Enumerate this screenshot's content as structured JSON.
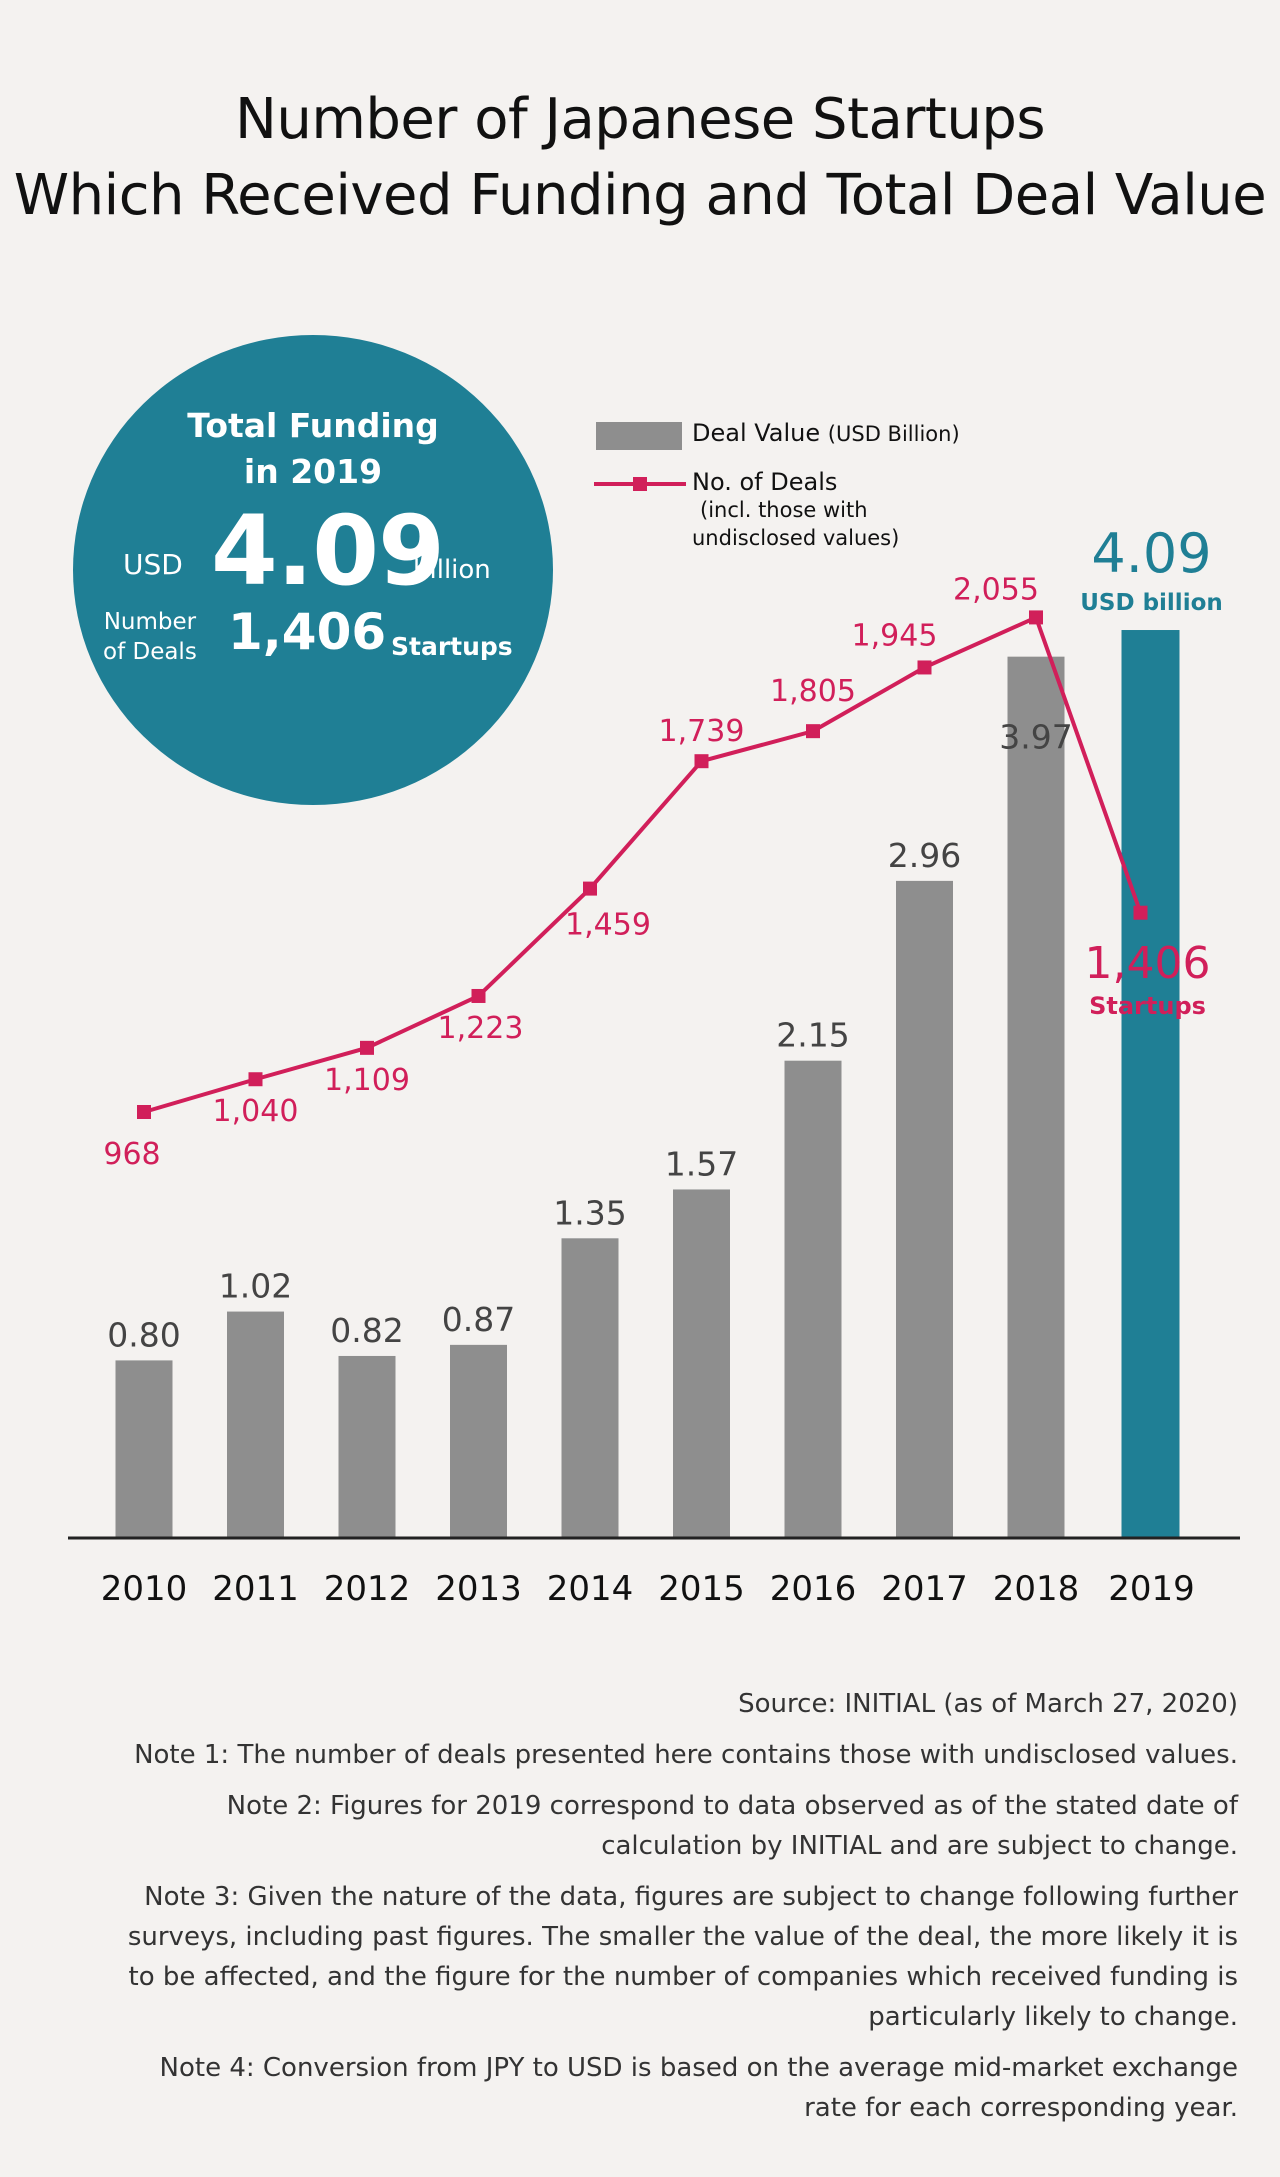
{
  "title_line1": "Number of Japanese Startups",
  "title_line2": "Which Received Funding and Total Deal Value",
  "badge": {
    "heading_line1": "Total Funding",
    "heading_line2": "in 2019",
    "currency": "USD",
    "amount": "4.09",
    "unit": "billion",
    "deals_label_line1": "Number",
    "deals_label_line2": "of Deals",
    "deals_value": "1,406",
    "deals_unit": "Startups"
  },
  "legend": {
    "bars_label": "Deal Value",
    "bars_unit": "(USD Billion)",
    "line_label": "No. of Deals",
    "line_note_line1": "(incl. those with",
    "line_note_line2": "undisclosed values)"
  },
  "highlight": {
    "value_label": "4.09",
    "value_unit": "USD billion",
    "deals_label": "1,406",
    "deals_unit": "Startups"
  },
  "colors": {
    "bar": "#8e8e8e",
    "highlight_bar": "#1f7f95",
    "line": "#d11f5a",
    "background": "#f4f2f0"
  },
  "chart_data": {
    "type": "bar",
    "categories": [
      "2010",
      "2011",
      "2012",
      "2013",
      "2014",
      "2015",
      "2016",
      "2017",
      "2018",
      "2019"
    ],
    "series": [
      {
        "name": "Deal Value (USD Billion)",
        "type": "bar",
        "values": [
          0.8,
          1.02,
          0.82,
          0.87,
          1.35,
          1.57,
          2.15,
          2.96,
          3.97,
          4.09
        ],
        "labels": [
          "0.80",
          "1.02",
          "0.82",
          "0.87",
          "1.35",
          "1.57",
          "2.15",
          "2.96",
          "3.97",
          "4.09"
        ]
      },
      {
        "name": "No. of Deals",
        "type": "line",
        "values": [
          968,
          1040,
          1109,
          1223,
          1459,
          1739,
          1805,
          1945,
          2055,
          1406
        ],
        "labels": [
          "968",
          "1,040",
          "1,109",
          "1,223",
          "1,459",
          "1,739",
          "1,805",
          "1,945",
          "2,055",
          "1,406"
        ]
      }
    ],
    "grid": false
  },
  "notes": {
    "source": "Source: INITIAL (as of March 27, 2020)",
    "note1": "Note 1: The number of deals presented here contains those with undisclosed values.",
    "note2_line1": "Note 2: Figures for 2019 correspond to data observed as of the stated date of",
    "note2_line2": "calculation by INITIAL and are subject to change.",
    "note3_line1": "Note 3: Given the nature of the data, figures are subject to change following further",
    "note3_line2": "surveys, including past figures. The smaller the value of the deal, the more likely it is",
    "note3_line3": "to be affected, and the figure for the number of companies which received funding is",
    "note3_line4": "particularly likely to change.",
    "note4_line1": "Note 4: Conversion from JPY to USD is based on the average mid-market exchange",
    "note4_line2": "rate for each corresponding year."
  }
}
